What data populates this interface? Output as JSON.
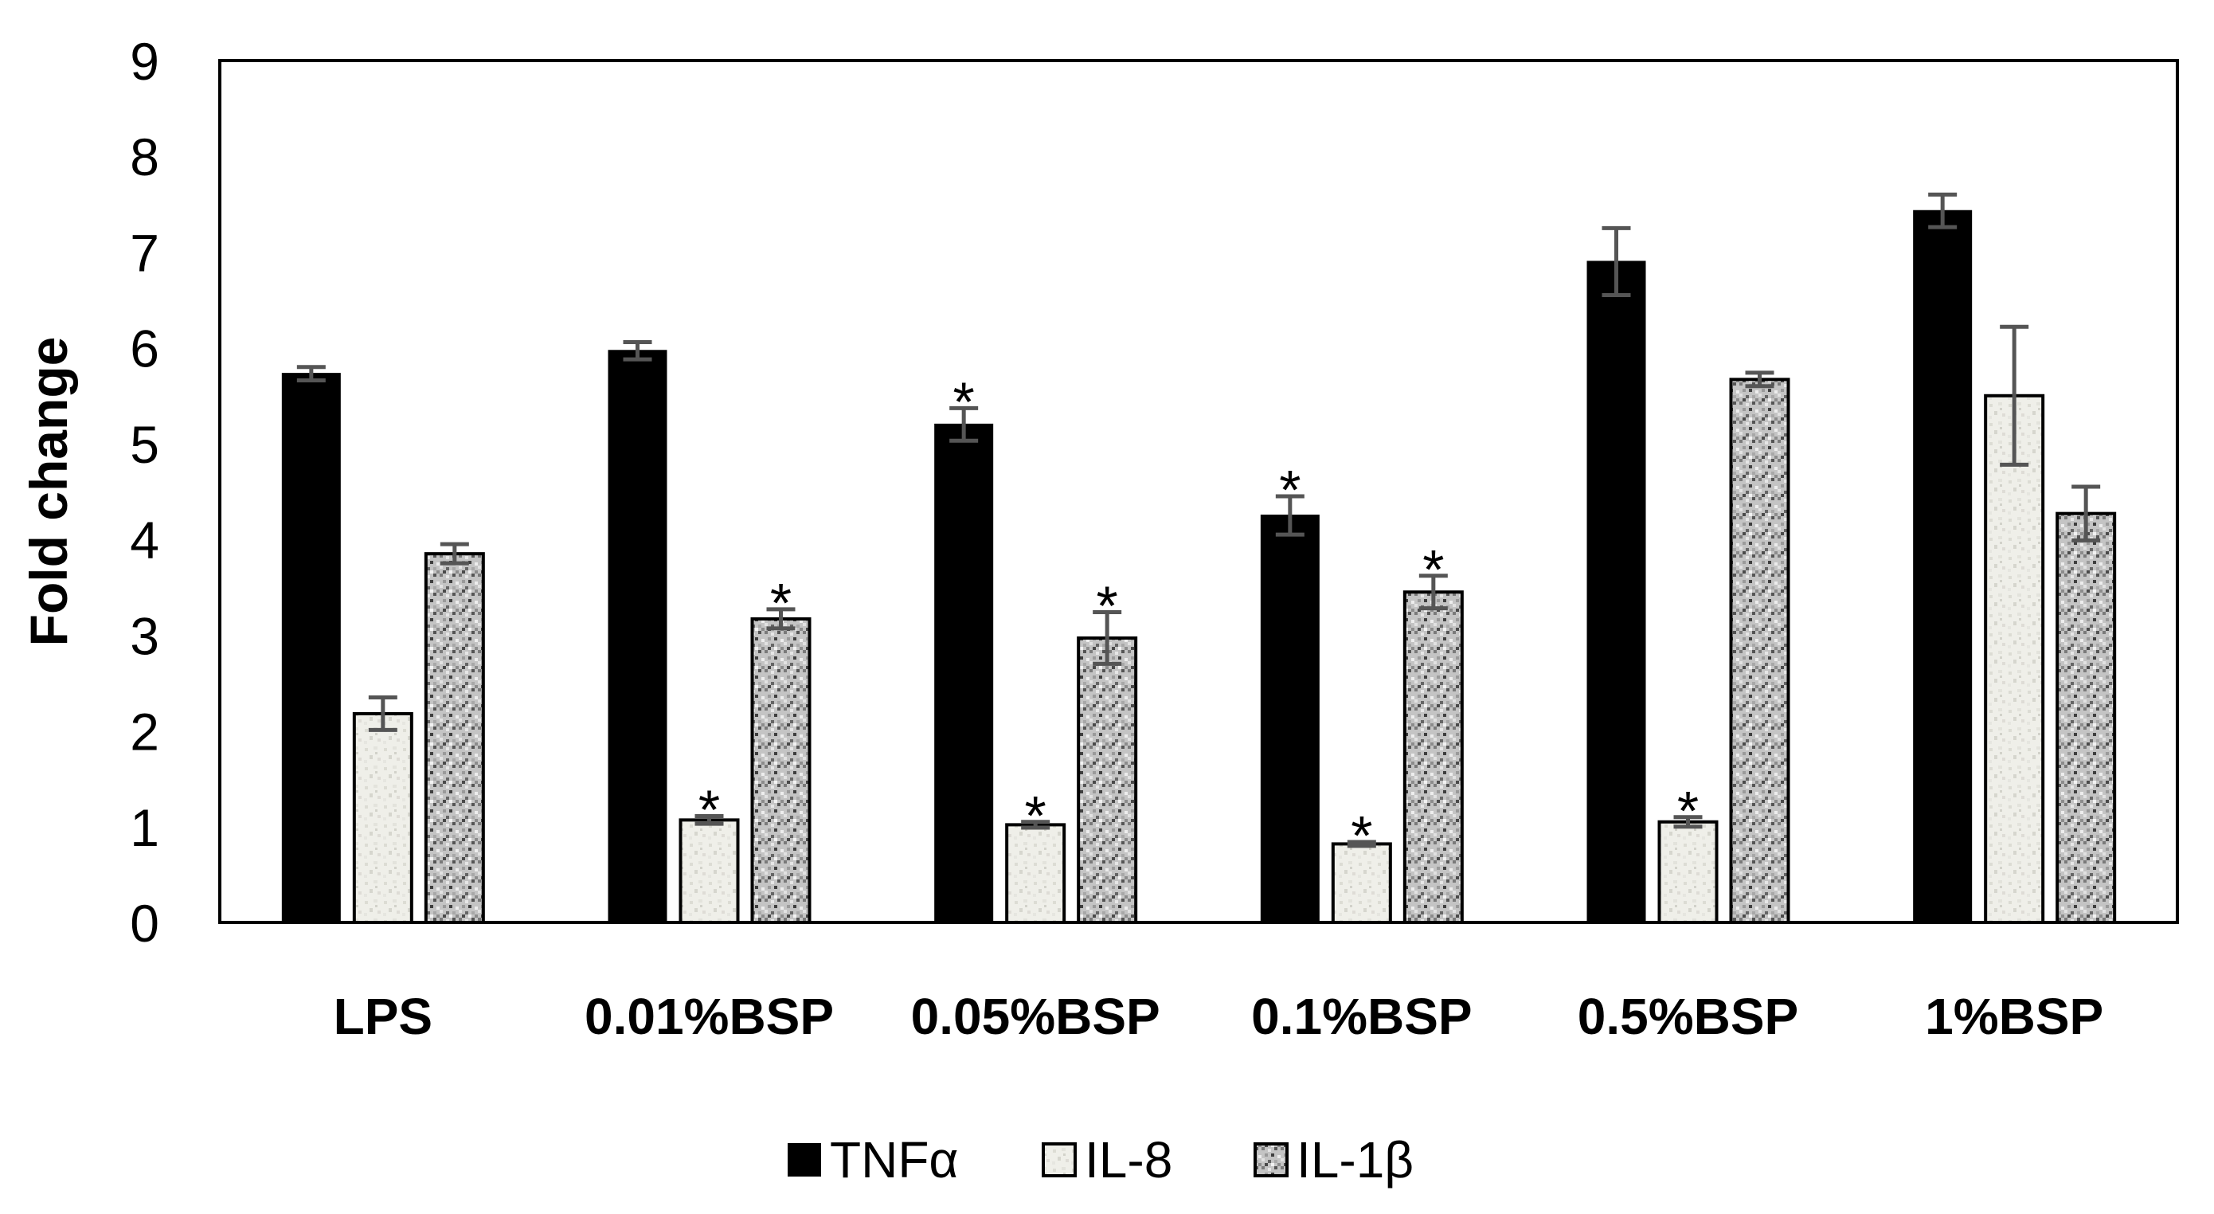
{
  "chart_data": {
    "type": "bar",
    "title": "",
    "xlabel": "",
    "ylabel": "Fold change",
    "ylim": [
      0,
      9
    ],
    "yticks": [
      0,
      1,
      2,
      3,
      4,
      5,
      6,
      7,
      8,
      9
    ],
    "categories": [
      "LPS",
      "0.01%BSP",
      "0.05%BSP",
      "0.1%BSP",
      "0.5%BSP",
      "1%BSP"
    ],
    "series": [
      {
        "name": "TNFα",
        "pattern": "solid-black",
        "values": [
          5.73,
          5.97,
          5.2,
          4.25,
          6.9,
          7.43
        ],
        "errors": [
          0.07,
          0.09,
          0.17,
          0.2,
          0.35,
          0.17
        ],
        "significant": [
          false,
          false,
          true,
          true,
          false,
          false
        ]
      },
      {
        "name": "IL-8",
        "pattern": "light-speckle",
        "values": [
          2.18,
          1.07,
          1.02,
          0.82,
          1.05,
          5.5
        ],
        "errors": [
          0.17,
          0.04,
          0.03,
          0.02,
          0.05,
          0.72
        ],
        "significant": [
          false,
          true,
          true,
          true,
          true,
          false
        ]
      },
      {
        "name": "IL-1β",
        "pattern": "dark-speckle",
        "values": [
          3.85,
          3.17,
          2.97,
          3.45,
          5.67,
          4.27
        ],
        "errors": [
          0.1,
          0.1,
          0.27,
          0.17,
          0.07,
          0.28
        ],
        "significant": [
          false,
          true,
          true,
          true,
          false,
          false
        ]
      }
    ],
    "significance_marker": "*",
    "legend_position": "bottom-center",
    "grid": false
  }
}
